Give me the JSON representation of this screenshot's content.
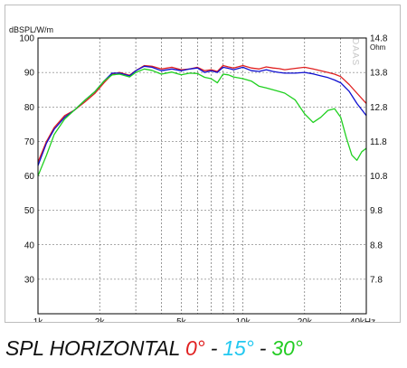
{
  "chart_data": {
    "type": "line",
    "ylabel": "dBSPL/W/m",
    "y2label": "Ohm",
    "watermark": "DAAS",
    "x_scale": "log",
    "xlim": [
      1000,
      40000
    ],
    "ylim": [
      20,
      100
    ],
    "y2lim": [
      6.8,
      14.8
    ],
    "grid": true,
    "x_ticks": [
      {
        "value": 1000,
        "label": "1k"
      },
      {
        "value": 2000,
        "label": "2k"
      },
      {
        "value": 5000,
        "label": "5k"
      },
      {
        "value": 10000,
        "label": "10k"
      },
      {
        "value": 20000,
        "label": "20k"
      },
      {
        "value": 40000,
        "label": "40kHz"
      }
    ],
    "x_minor_gridlines": [
      3000,
      4000,
      6000,
      7000,
      8000,
      9000,
      30000
    ],
    "y_ticks": [
      {
        "value": 100,
        "label": "100"
      },
      {
        "value": 90,
        "label": "90"
      },
      {
        "value": 80,
        "label": "80"
      },
      {
        "value": 70,
        "label": "70"
      },
      {
        "value": 60,
        "label": "60"
      },
      {
        "value": 50,
        "label": "50"
      },
      {
        "value": 40,
        "label": "40"
      },
      {
        "value": 30,
        "label": "30"
      }
    ],
    "y2_ticks": [
      {
        "value": 14.8,
        "label": "14.8"
      },
      {
        "value": 13.8,
        "label": "13.8"
      },
      {
        "value": 12.8,
        "label": "12.8"
      },
      {
        "value": 11.8,
        "label": "11.8"
      },
      {
        "value": 10.8,
        "label": "10.8"
      },
      {
        "value": 9.8,
        "label": "9.8"
      },
      {
        "value": 8.8,
        "label": "8.8"
      },
      {
        "value": 7.8,
        "label": "7.8"
      }
    ],
    "series": [
      {
        "color": "#e02020",
        "x": [
          1000,
          1100,
          1200,
          1350,
          1500,
          1700,
          1900,
          2100,
          2300,
          2500,
          2800,
          3000,
          3300,
          3600,
          4000,
          4500,
          5000,
          5500,
          6000,
          6500,
          7000,
          7500,
          8000,
          8500,
          9000,
          10000,
          11000,
          12000,
          13000,
          14000,
          15000,
          16000,
          18000,
          20000,
          22000,
          24000,
          26000,
          28000,
          30000,
          33000,
          36000,
          40000
        ],
        "y": [
          64,
          70,
          74,
          77.5,
          79,
          81.5,
          84,
          87,
          89.5,
          90,
          89.2,
          90.5,
          92,
          91.8,
          91,
          91.5,
          90.8,
          91,
          91.5,
          90.5,
          90.8,
          90.3,
          92,
          91.6,
          91.3,
          92,
          91.3,
          91,
          91.6,
          91.3,
          91.1,
          90.8,
          91.2,
          91.5,
          91,
          90.5,
          90,
          89.5,
          88.8,
          86.5,
          84,
          81
        ]
      },
      {
        "color": "#1010d0",
        "x": [
          1000,
          1100,
          1200,
          1350,
          1500,
          1700,
          1900,
          2100,
          2300,
          2500,
          2800,
          3000,
          3300,
          3600,
          4000,
          4500,
          5000,
          5500,
          6000,
          6500,
          7000,
          7500,
          8000,
          8500,
          9000,
          10000,
          11000,
          12000,
          13000,
          14000,
          15000,
          16000,
          18000,
          20000,
          22000,
          24000,
          26000,
          28000,
          30000,
          33000,
          36000,
          40000
        ],
        "y": [
          63,
          69.5,
          73.5,
          77,
          79,
          82,
          84.5,
          87.5,
          89.8,
          89.8,
          89,
          90.5,
          91.8,
          91.5,
          90.5,
          91,
          90.5,
          91,
          91.3,
          90,
          90.5,
          90,
          91.5,
          91.2,
          90.8,
          91.5,
          90.5,
          90.3,
          90.8,
          90.3,
          90,
          89.8,
          89.8,
          90,
          89.6,
          89,
          88.5,
          87.8,
          87,
          84.5,
          81,
          77.5
        ]
      },
      {
        "color": "#20d020",
        "x": [
          1000,
          1100,
          1200,
          1350,
          1500,
          1700,
          1900,
          2100,
          2300,
          2500,
          2800,
          3000,
          3300,
          3600,
          4000,
          4500,
          5000,
          5500,
          6000,
          6500,
          7000,
          7500,
          8000,
          8500,
          9000,
          10000,
          11000,
          12000,
          13000,
          14000,
          15000,
          16000,
          18000,
          20000,
          22000,
          24000,
          26000,
          28000,
          30000,
          32000,
          34000,
          36000,
          38000,
          40000
        ],
        "y": [
          60,
          66,
          72,
          76.5,
          79,
          82,
          84.5,
          87.5,
          89.3,
          89.5,
          88.7,
          90,
          91,
          90.6,
          89.5,
          90.1,
          89.3,
          89.8,
          89.7,
          88.6,
          88.2,
          87,
          89.5,
          89.3,
          88.7,
          88.2,
          87.5,
          86,
          85.5,
          85,
          84.5,
          84,
          82,
          78,
          75.5,
          77,
          79,
          79.5,
          77,
          71,
          66,
          64.5,
          67,
          68
        ]
      }
    ]
  },
  "caption": {
    "prefix": "SPL HORIZONTAL ",
    "deg0": "0°",
    "sep1": " - ",
    "deg15": "15°",
    "sep2": " - ",
    "deg30": "30°",
    "color0": "#e02020",
    "color15": "#22c8f0",
    "color30": "#22cc22"
  }
}
